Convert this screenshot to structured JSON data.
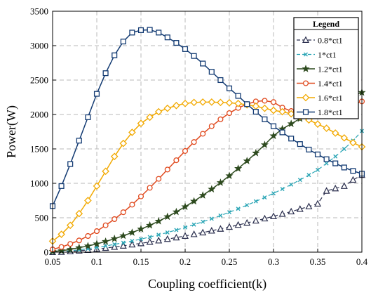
{
  "chart_data": {
    "type": "line",
    "title": "",
    "xlabel": "Coupling coefficient(k)",
    "ylabel": "Power(W)",
    "xlim": [
      0.05,
      0.4
    ],
    "ylim": [
      0,
      3500
    ],
    "xticks": [
      "0.05",
      "0.1",
      "0.15",
      "0.2",
      "0.25",
      "0.3",
      "0.35",
      "0.4"
    ],
    "yticks": [
      "0",
      "500",
      "1000",
      "1500",
      "2000",
      "2500",
      "3000",
      "3500"
    ],
    "grid": true,
    "legend": {
      "title": "Legend",
      "placement": "top-right"
    },
    "series": [
      {
        "name": "0.8*ct1",
        "color": "#2b2f4e",
        "marker": "triangle",
        "dash": "dashed",
        "x": [
          0.05,
          0.06,
          0.07,
          0.08,
          0.09,
          0.1,
          0.11,
          0.12,
          0.13,
          0.14,
          0.15,
          0.16,
          0.17,
          0.18,
          0.19,
          0.2,
          0.21,
          0.22,
          0.23,
          0.24,
          0.25,
          0.26,
          0.27,
          0.28,
          0.29,
          0.3,
          0.31,
          0.32,
          0.33,
          0.34,
          0.35,
          0.36,
          0.37,
          0.38,
          0.39,
          0.4
        ],
        "y": [
          0,
          3,
          10,
          20,
          30,
          45,
          60,
          75,
          92,
          110,
          128,
          148,
          168,
          190,
          212,
          235,
          260,
          285,
          311,
          338,
          366,
          395,
          425,
          456,
          488,
          521,
          555,
          590,
          626,
          664,
          703,
          890,
          925,
          960,
          1050,
          1120
        ]
      },
      {
        "name": "1*ct1",
        "color": "#2aa5b5",
        "marker": "x",
        "dash": "dashed",
        "x": [
          0.05,
          0.06,
          0.07,
          0.08,
          0.09,
          0.1,
          0.11,
          0.12,
          0.13,
          0.14,
          0.15,
          0.16,
          0.17,
          0.18,
          0.19,
          0.2,
          0.21,
          0.22,
          0.23,
          0.24,
          0.25,
          0.26,
          0.27,
          0.28,
          0.29,
          0.3,
          0.31,
          0.32,
          0.33,
          0.34,
          0.35,
          0.36,
          0.37,
          0.38,
          0.39,
          0.4
        ],
        "y": [
          0,
          10,
          20,
          35,
          50,
          70,
          90,
          113,
          137,
          162,
          190,
          220,
          252,
          286,
          322,
          360,
          400,
          442,
          486,
          532,
          580,
          630,
          683,
          738,
          795,
          855,
          917,
          982,
          1050,
          1120,
          1195,
          1290,
          1390,
          1500,
          1620,
          1760
        ]
      },
      {
        "name": "1.2*ct1",
        "color": "#2d4a1e",
        "marker": "star",
        "dash": "solid",
        "x": [
          0.05,
          0.06,
          0.07,
          0.08,
          0.09,
          0.1,
          0.11,
          0.12,
          0.13,
          0.14,
          0.15,
          0.16,
          0.17,
          0.18,
          0.19,
          0.2,
          0.21,
          0.22,
          0.23,
          0.24,
          0.25,
          0.26,
          0.27,
          0.28,
          0.29,
          0.3,
          0.31,
          0.32,
          0.33,
          0.34,
          0.35,
          0.36,
          0.37,
          0.38,
          0.39,
          0.4
        ],
        "y": [
          10,
          20,
          40,
          65,
          90,
          120,
          155,
          195,
          238,
          285,
          335,
          390,
          450,
          515,
          585,
          660,
          740,
          825,
          915,
          1010,
          1110,
          1215,
          1325,
          1440,
          1560,
          1690,
          1790,
          1865,
          1940,
          2000,
          2080,
          2150,
          2200,
          2250,
          2280,
          2320
        ]
      },
      {
        "name": "1.4*ct1",
        "color": "#e04a1f",
        "marker": "circle",
        "dash": "solid",
        "x": [
          0.05,
          0.06,
          0.07,
          0.08,
          0.09,
          0.1,
          0.11,
          0.12,
          0.13,
          0.14,
          0.15,
          0.16,
          0.17,
          0.18,
          0.19,
          0.2,
          0.21,
          0.22,
          0.23,
          0.24,
          0.25,
          0.26,
          0.27,
          0.28,
          0.29,
          0.3,
          0.31,
          0.32,
          0.33,
          0.34,
          0.35,
          0.36,
          0.37,
          0.38,
          0.39,
          0.4
        ],
        "y": [
          40,
          75,
          120,
          170,
          235,
          305,
          390,
          480,
          580,
          690,
          810,
          935,
          1065,
          1200,
          1335,
          1470,
          1600,
          1720,
          1830,
          1930,
          2020,
          2095,
          2150,
          2190,
          2200,
          2180,
          2100,
          2050,
          2030,
          2050,
          2060,
          2060,
          2080,
          2100,
          2150,
          2190
        ]
      },
      {
        "name": "1.6*ct1",
        "color": "#f2a900",
        "marker": "diamond",
        "dash": "solid",
        "x": [
          0.05,
          0.06,
          0.07,
          0.08,
          0.09,
          0.1,
          0.11,
          0.12,
          0.13,
          0.14,
          0.15,
          0.16,
          0.17,
          0.18,
          0.19,
          0.2,
          0.21,
          0.22,
          0.23,
          0.24,
          0.25,
          0.26,
          0.27,
          0.28,
          0.29,
          0.3,
          0.31,
          0.32,
          0.33,
          0.34,
          0.35,
          0.36,
          0.37,
          0.38,
          0.39,
          0.4
        ],
        "y": [
          160,
          260,
          390,
          560,
          750,
          960,
          1175,
          1390,
          1580,
          1740,
          1870,
          1960,
          2040,
          2090,
          2130,
          2160,
          2175,
          2180,
          2180,
          2175,
          2170,
          2160,
          2140,
          2120,
          2090,
          2060,
          2040,
          2010,
          1970,
          1920,
          1860,
          1800,
          1730,
          1660,
          1590,
          1530
        ]
      },
      {
        "name": "1.8*ct1",
        "color": "#123a72",
        "marker": "square",
        "dash": "solid",
        "x": [
          0.05,
          0.06,
          0.07,
          0.08,
          0.09,
          0.1,
          0.11,
          0.12,
          0.13,
          0.14,
          0.15,
          0.16,
          0.17,
          0.18,
          0.19,
          0.2,
          0.21,
          0.22,
          0.23,
          0.24,
          0.25,
          0.26,
          0.27,
          0.28,
          0.29,
          0.3,
          0.31,
          0.32,
          0.33,
          0.34,
          0.35,
          0.36,
          0.37,
          0.38,
          0.39,
          0.4
        ],
        "y": [
          670,
          960,
          1280,
          1620,
          1960,
          2300,
          2600,
          2860,
          3060,
          3190,
          3225,
          3230,
          3190,
          3120,
          3040,
          2950,
          2850,
          2740,
          2620,
          2500,
          2380,
          2270,
          2150,
          2040,
          1930,
          1830,
          1740,
          1650,
          1570,
          1490,
          1420,
          1350,
          1290,
          1230,
          1180,
          1140
        ]
      }
    ]
  }
}
